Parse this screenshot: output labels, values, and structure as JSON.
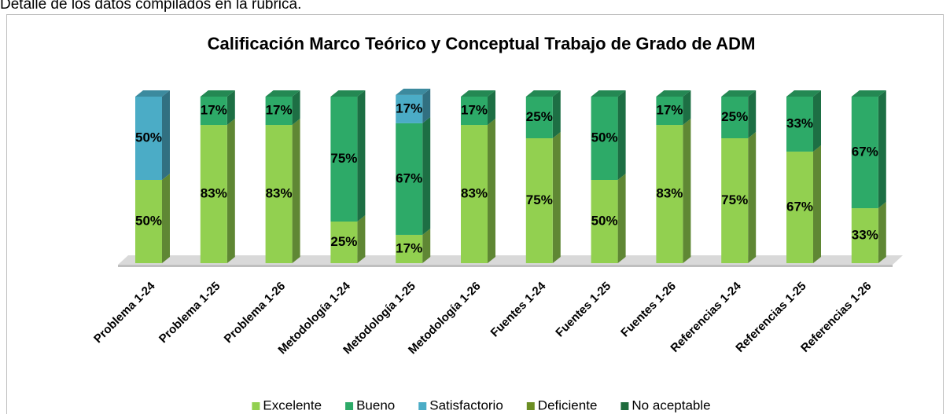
{
  "heading": "Detalle de los datos compilados en la rúbrica.",
  "chart_data": {
    "type": "bar3d_stacked",
    "title": "Calificación Marco Teórico y Conceptual Trabajo de Grado de ADM",
    "categories": [
      "Problema 1-24",
      "Problema 1-25",
      "Problema 1-26",
      "Metodología 1-24",
      "Metodología 1-25",
      "Metodología 1-26",
      "Fuentes 1-24",
      "Fuentes 1-25",
      "Fuentes 1-26",
      "Referencias 1-24",
      "Referencias 1-25",
      "Referencias 1-26"
    ],
    "ylim": [
      0,
      100
    ],
    "legend": "bottom",
    "series": [
      {
        "name": "Excelente",
        "color": "#92d050",
        "values": [
          50,
          83,
          83,
          25,
          17,
          83,
          75,
          50,
          83,
          75,
          67,
          33
        ],
        "value_labels": [
          "50%",
          "83%",
          "83%",
          "25%",
          "17%",
          "83%",
          "75%",
          "50%",
          "83%",
          "75%",
          "67%",
          "33%"
        ]
      },
      {
        "name": "Bueno",
        "color": "#2daa68",
        "values": [
          0,
          17,
          17,
          75,
          67,
          17,
          25,
          50,
          17,
          25,
          33,
          67
        ],
        "value_labels": [
          null,
          "17%",
          "17%",
          "75%",
          "67%",
          "17%",
          "25%",
          "50%",
          "17%",
          "25%",
          "33%",
          "67%"
        ]
      },
      {
        "name": "Satisfactorio",
        "color": "#4bacc6",
        "values": [
          50,
          0,
          0,
          0,
          17,
          0,
          0,
          0,
          0,
          0,
          0,
          0
        ],
        "value_labels": [
          "50%",
          null,
          null,
          null,
          "17%",
          null,
          null,
          null,
          null,
          null,
          null,
          null
        ]
      },
      {
        "name": "Deficiente",
        "color": "#6b8e23",
        "values": [
          0,
          0,
          0,
          0,
          0,
          0,
          0,
          0,
          0,
          0,
          0,
          0
        ],
        "value_labels": [
          null,
          null,
          null,
          null,
          null,
          null,
          null,
          null,
          null,
          null,
          null,
          null
        ]
      },
      {
        "name": "No aceptable",
        "color": "#1e6b3c",
        "values": [
          0,
          0,
          0,
          0,
          0,
          0,
          0,
          0,
          0,
          0,
          0,
          0
        ],
        "value_labels": [
          null,
          null,
          null,
          null,
          null,
          null,
          null,
          null,
          null,
          null,
          null,
          null
        ]
      }
    ]
  }
}
